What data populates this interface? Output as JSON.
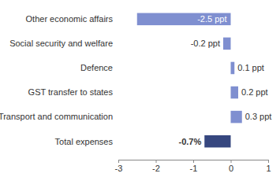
{
  "chart_data": {
    "type": "bar",
    "orientation": "horizontal",
    "categories": [
      "Other economic affairs",
      "Social security and welfare",
      "Defence",
      "GST transfer to states",
      "Transport and communication",
      "Total expenses"
    ],
    "values": [
      -2.5,
      -0.2,
      0.1,
      0.2,
      0.3,
      -0.7
    ],
    "value_labels": [
      "-2.5 ppt",
      "-0.2 ppt",
      "0.1 ppt",
      "0.2 ppt",
      "0.3 ppt",
      "-0.7%"
    ],
    "colors": [
      "#7f8fd0",
      "#7f8fd0",
      "#7f8fd0",
      "#7f8fd0",
      "#7f8fd0",
      "#36477f"
    ],
    "xlim": [
      -3,
      1
    ],
    "xticks": [
      -3,
      -2,
      -1,
      0,
      1
    ],
    "data_labels": true,
    "grid": false
  }
}
